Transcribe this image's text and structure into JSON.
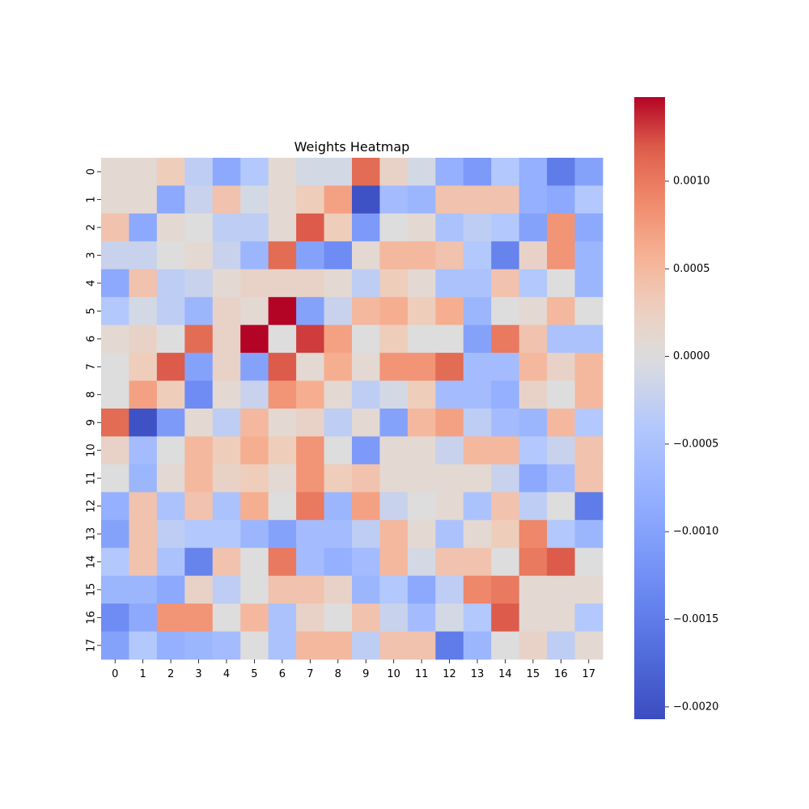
{
  "chart_data": {
    "type": "heatmap",
    "title": "Weights Heatmap",
    "xlabel": "",
    "ylabel": "",
    "x_labels": [
      "0",
      "1",
      "2",
      "3",
      "4",
      "5",
      "6",
      "7",
      "8",
      "9",
      "10",
      "11",
      "12",
      "13",
      "14",
      "15",
      "16",
      "17"
    ],
    "y_labels": [
      "0",
      "1",
      "2",
      "3",
      "4",
      "5",
      "6",
      "7",
      "8",
      "9",
      "10",
      "11",
      "12",
      "13",
      "14",
      "15",
      "16",
      "17"
    ],
    "colormap": "coolwarm",
    "vmin": -0.00207,
    "vmax": 0.00148,
    "grid": false,
    "colorbar": {
      "position": "right",
      "ticks": [
        0.001,
        0.0005,
        0.0,
        -0.0005,
        -0.001,
        -0.0015,
        -0.002
      ],
      "tick_labels": [
        "0.0010",
        "0.0005",
        "0.0000",
        "−0.0005",
        "−0.0010",
        "−0.0015",
        "−0.0020"
      ]
    },
    "values": [
      [
        0.0001,
        0.0001,
        0.0003,
        -0.0003,
        -0.0009,
        -0.0004,
        0.0001,
        -0.0001,
        -0.0001,
        0.0011,
        0.0002,
        -0.0001,
        -0.0008,
        -0.0011,
        -0.0004,
        -0.0008,
        -0.0015,
        -0.001
      ],
      [
        0.0001,
        0.0001,
        -0.0009,
        -0.0002,
        0.0004,
        -0.0001,
        0.0001,
        0.0003,
        0.0007,
        -0.002,
        -0.0006,
        -0.0007,
        0.0004,
        0.0004,
        0.0004,
        -0.0008,
        -0.0009,
        -0.0004
      ],
      [
        0.0004,
        -0.0009,
        0.0001,
        0.0,
        -0.0003,
        -0.0003,
        0.0001,
        0.0012,
        0.0003,
        -0.0011,
        0.0,
        0.0001,
        -0.0005,
        -0.0003,
        -0.0004,
        -0.001,
        0.0008,
        -0.0009
      ],
      [
        -0.0002,
        -0.0002,
        0.0,
        0.0001,
        -0.0002,
        -0.0007,
        0.0011,
        -0.001,
        -0.0013,
        0.0001,
        0.0005,
        0.0005,
        0.0004,
        -0.0004,
        -0.0014,
        0.0002,
        0.0008,
        -0.0007
      ],
      [
        -0.0009,
        0.0004,
        -0.0003,
        -0.0002,
        0.0001,
        0.0002,
        0.0002,
        0.0002,
        0.0001,
        -0.0003,
        0.0003,
        0.0001,
        -0.0005,
        -0.0005,
        0.0004,
        -0.0004,
        0.0,
        -0.0007
      ],
      [
        -0.0004,
        -0.0001,
        -0.0003,
        -0.0007,
        0.0002,
        0.0001,
        0.0015,
        -0.001,
        -0.0002,
        0.0005,
        0.0006,
        0.0003,
        0.0006,
        -0.0007,
        0.0,
        0.0001,
        0.0005,
        0.0
      ],
      [
        0.0001,
        0.0002,
        0.0,
        0.0011,
        0.0002,
        0.0015,
        0.0,
        0.0013,
        0.0007,
        0.0,
        0.0003,
        0.0,
        0.0,
        -0.001,
        0.001,
        0.0004,
        -0.0005,
        -0.0005
      ],
      [
        0.0,
        0.0003,
        0.0012,
        -0.001,
        0.0002,
        -0.001,
        0.0012,
        0.0001,
        0.0006,
        0.0001,
        0.0008,
        0.0008,
        0.0011,
        -0.0006,
        -0.0006,
        0.0005,
        0.0002,
        0.0005
      ],
      [
        0.0,
        0.0007,
        0.0003,
        -0.0013,
        0.0001,
        -0.0002,
        0.0008,
        0.0006,
        0.0001,
        -0.0003,
        -0.0001,
        0.0003,
        -0.0006,
        -0.0006,
        -0.0008,
        0.0002,
        0.0,
        0.0005
      ],
      [
        0.0011,
        -0.002,
        -0.0011,
        0.0001,
        -0.0003,
        0.0005,
        0.0001,
        0.0002,
        -0.0003,
        0.0001,
        -0.001,
        0.0005,
        0.0007,
        -0.0003,
        -0.0006,
        -0.0007,
        0.0005,
        -0.0004
      ],
      [
        0.0002,
        -0.0006,
        0.0,
        0.0005,
        0.0003,
        0.0006,
        0.0003,
        0.0008,
        0.0,
        -0.0011,
        0.0001,
        0.0001,
        -0.0002,
        0.0005,
        0.0005,
        -0.0004,
        -0.0002,
        0.0004
      ],
      [
        0.0,
        -0.0007,
        0.0001,
        0.0005,
        0.0002,
        0.0003,
        0.0001,
        0.0008,
        0.0003,
        0.0004,
        0.0001,
        0.0001,
        0.0001,
        0.0001,
        -0.0002,
        -0.0009,
        -0.0006,
        0.0004
      ],
      [
        -0.0008,
        0.0004,
        -0.0005,
        0.0004,
        -0.0005,
        0.0006,
        0.0,
        0.001,
        -0.0007,
        0.0007,
        -0.0002,
        0.0,
        0.0001,
        -0.0005,
        0.0004,
        -0.0003,
        0.0,
        -0.0015
      ],
      [
        -0.001,
        0.0004,
        -0.0003,
        -0.0004,
        -0.0004,
        -0.0007,
        -0.001,
        -0.0006,
        -0.0006,
        -0.0003,
        0.0005,
        0.0001,
        -0.0005,
        0.0001,
        0.0003,
        0.0009,
        -0.0004,
        -0.0007
      ],
      [
        -0.0004,
        0.0004,
        -0.0005,
        -0.0014,
        0.0004,
        0.0,
        0.001,
        -0.0006,
        -0.0008,
        -0.0006,
        0.0005,
        -0.0001,
        0.0004,
        0.0004,
        0.0,
        0.001,
        0.0012,
        0.0
      ],
      [
        -0.0007,
        -0.0007,
        -0.0009,
        0.0002,
        -0.0003,
        0.0,
        0.0004,
        0.0004,
        0.0002,
        -0.0007,
        -0.0004,
        -0.0009,
        -0.0003,
        0.0009,
        0.001,
        0.0001,
        0.0001,
        0.0001
      ],
      [
        -0.0013,
        -0.0009,
        0.0008,
        0.0008,
        0.0,
        0.0005,
        -0.0005,
        0.0002,
        0.0,
        0.0004,
        -0.0002,
        -0.0006,
        -0.0001,
        -0.0004,
        0.0012,
        0.0001,
        0.0001,
        -0.0004
      ],
      [
        -0.001,
        -0.0004,
        -0.0008,
        -0.0007,
        -0.0006,
        0.0,
        -0.0005,
        0.0005,
        0.0005,
        -0.0003,
        0.0004,
        0.0004,
        -0.0015,
        -0.0007,
        0.0,
        0.0002,
        -0.0003,
        0.0001
      ]
    ]
  }
}
